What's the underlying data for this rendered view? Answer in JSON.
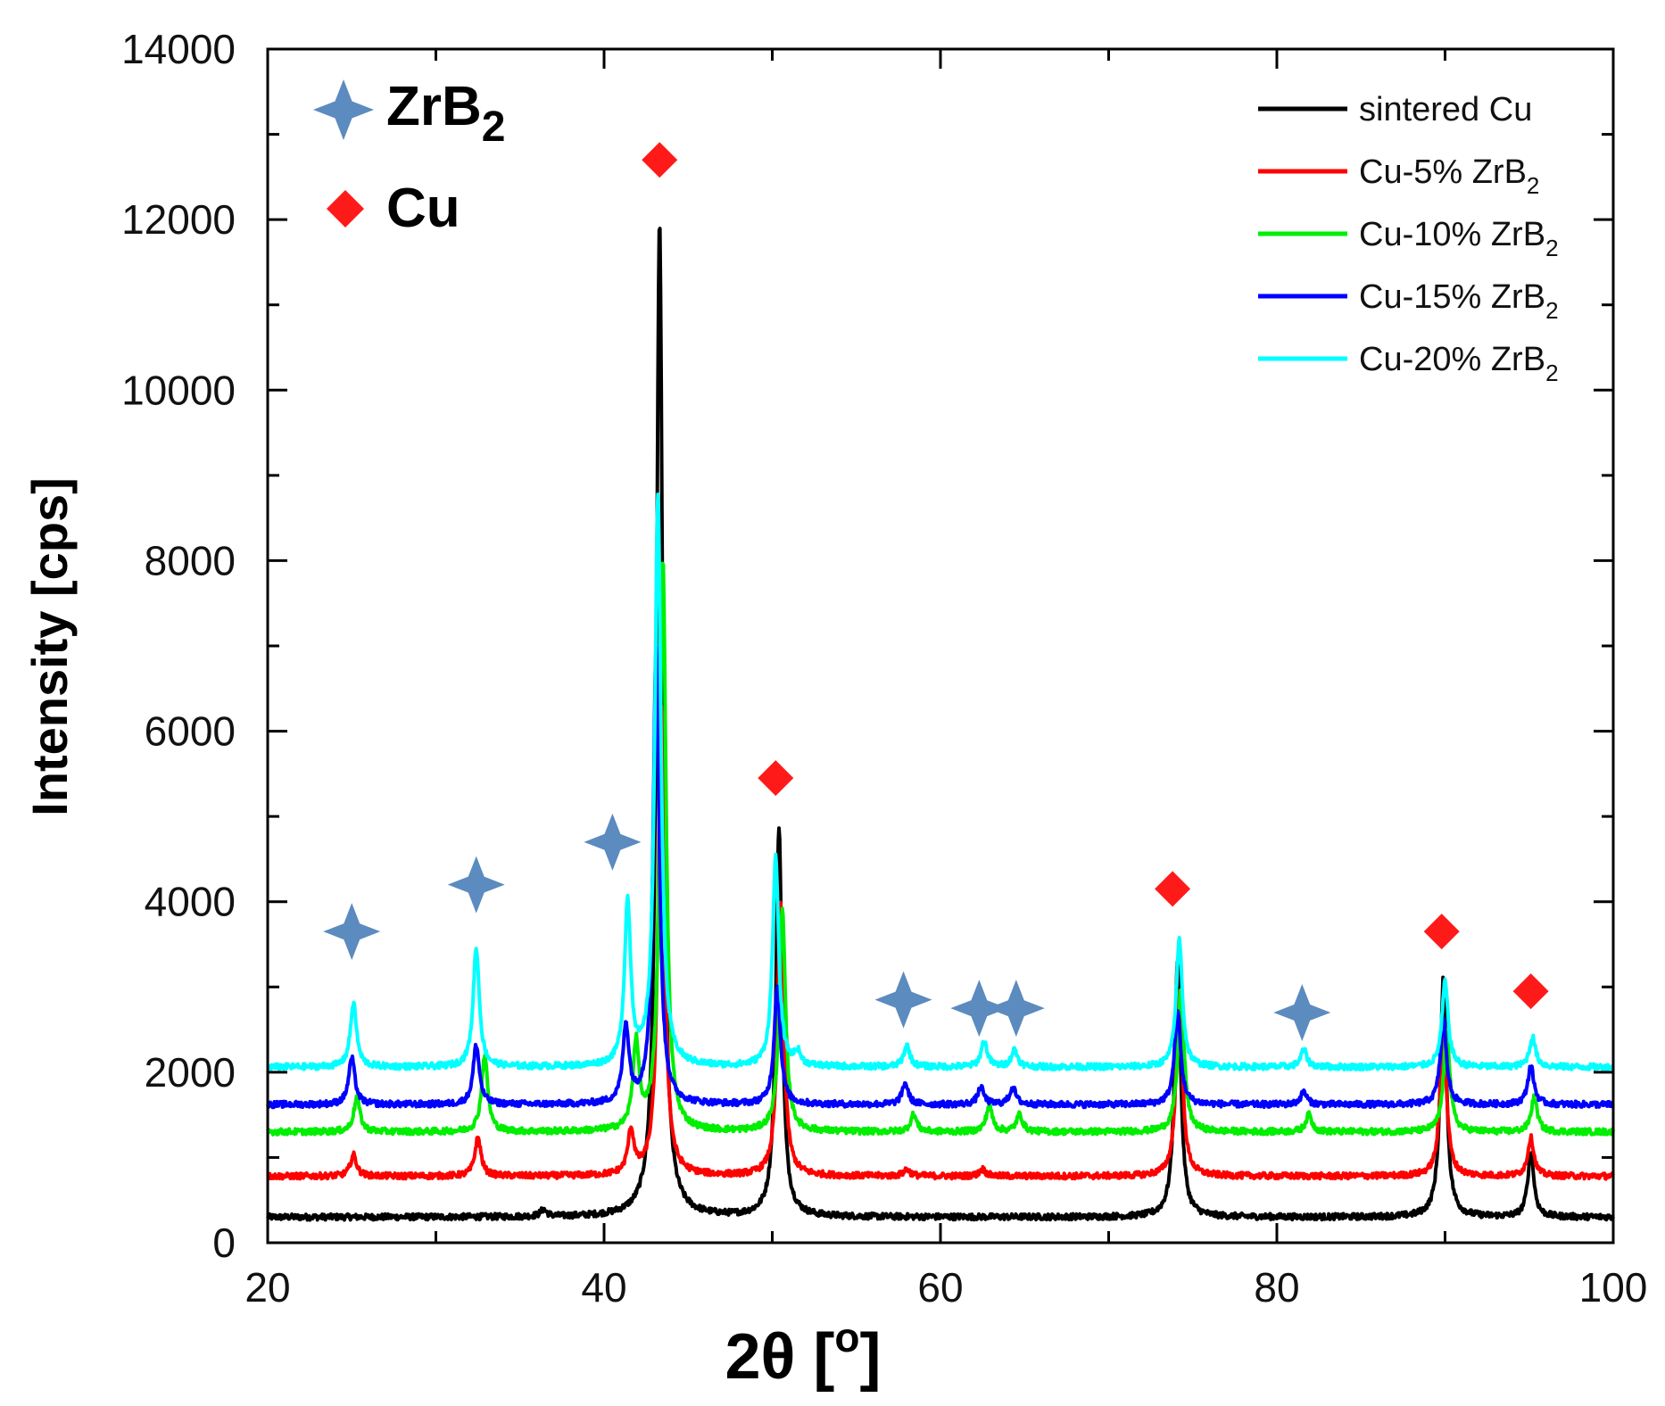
{
  "chart_data": {
    "type": "line",
    "title": "",
    "xlabel": "2θ [°]",
    "xlabel_base": "2θ [",
    "xlabel_sup": "o",
    "xlabel_close": "]",
    "ylabel": "Intensity [cps]",
    "xlim": [
      20,
      100
    ],
    "ylim": [
      0,
      14000
    ],
    "x_ticks": [
      20,
      40,
      60,
      80,
      100
    ],
    "y_ticks": [
      0,
      2000,
      4000,
      6000,
      8000,
      10000,
      12000,
      14000
    ],
    "grid": false,
    "legend_position": "top-right",
    "series": [
      {
        "name": "sintered Cu",
        "legend_base": "sintered Cu",
        "legend_sub": "",
        "color": "#000000",
        "baseline": 300,
        "peaks": [
          [
            36.4,
            80
          ],
          [
            43.3,
            11700
          ],
          [
            50.4,
            4550
          ],
          [
            74.1,
            3000
          ],
          [
            89.9,
            2800
          ],
          [
            95.1,
            750
          ]
        ]
      },
      {
        "name": "Cu-5% ZrB2",
        "legend_base": "Cu-5% ZrB",
        "legend_sub": "2",
        "color": "#ff0000",
        "baseline": 780,
        "peaks": [
          [
            25.1,
            250
          ],
          [
            32.5,
            450
          ],
          [
            41.6,
            500
          ],
          [
            43.4,
            5500
          ],
          [
            50.5,
            3200
          ],
          [
            58.0,
            80
          ],
          [
            62.5,
            80
          ],
          [
            74.2,
            2200
          ],
          [
            89.9,
            1800
          ],
          [
            95.1,
            450
          ]
        ]
      },
      {
        "name": "Cu-10% ZrB2",
        "legend_base": "Cu-10% ZrB",
        "legend_sub": "2",
        "color": "#00ee00",
        "baseline": 1300,
        "peaks": [
          [
            25.3,
            400
          ],
          [
            32.9,
            900
          ],
          [
            41.9,
            1000
          ],
          [
            43.5,
            6700
          ],
          [
            50.6,
            2600
          ],
          [
            58.4,
            200
          ],
          [
            62.9,
            300
          ],
          [
            64.7,
            200
          ],
          [
            74.3,
            1700
          ],
          [
            81.9,
            200
          ],
          [
            90.1,
            1200
          ],
          [
            95.3,
            400
          ]
        ]
      },
      {
        "name": "Cu-15% ZrB2",
        "legend_base": "Cu-15% ZrB",
        "legend_sub": "2",
        "color": "#0000ff",
        "baseline": 1620,
        "peaks": [
          [
            25.0,
            550
          ],
          [
            32.4,
            700
          ],
          [
            41.3,
            900
          ],
          [
            43.1,
            5400
          ],
          [
            50.3,
            1400
          ],
          [
            57.9,
            250
          ],
          [
            62.4,
            200
          ],
          [
            64.3,
            200
          ],
          [
            74.1,
            1100
          ],
          [
            81.6,
            150
          ],
          [
            89.9,
            1000
          ],
          [
            95.1,
            450
          ]
        ]
      },
      {
        "name": "Cu-20% ZrB2",
        "legend_base": "Cu-20% ZrB",
        "legend_sub": "2",
        "color": "#00ffff",
        "baseline": 2060,
        "peaks": [
          [
            25.1,
            750
          ],
          [
            32.4,
            1400
          ],
          [
            41.4,
            1900
          ],
          [
            43.2,
            6700
          ],
          [
            50.2,
            2450
          ],
          [
            51.5,
            150
          ],
          [
            58.0,
            250
          ],
          [
            62.6,
            300
          ],
          [
            64.4,
            200
          ],
          [
            74.2,
            1500
          ],
          [
            81.6,
            200
          ],
          [
            90.0,
            1000
          ],
          [
            95.2,
            350
          ]
        ]
      }
    ],
    "markers": {
      "zrb2": {
        "legend_base": "ZrB",
        "legend_sub": "2",
        "color": "#5b8bbf",
        "positions": [
          [
            25.0,
            3650
          ],
          [
            32.4,
            4200
          ],
          [
            40.5,
            4700
          ],
          [
            57.8,
            2850
          ],
          [
            62.3,
            2750
          ],
          [
            64.5,
            2750
          ],
          [
            81.5,
            2700
          ]
        ]
      },
      "cu": {
        "legend_label": "Cu",
        "color": "#ff1a1a",
        "positions": [
          [
            43.3,
            12700
          ],
          [
            50.2,
            5450
          ],
          [
            73.8,
            4150
          ],
          [
            89.8,
            3650
          ],
          [
            95.1,
            2950
          ]
        ]
      }
    }
  }
}
